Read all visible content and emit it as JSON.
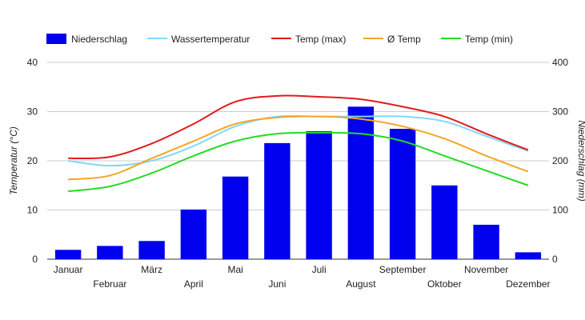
{
  "chart_data": {
    "type": "bar+line",
    "categories": [
      "Januar",
      "Februar",
      "März",
      "April",
      "Mai",
      "Juni",
      "Juli",
      "August",
      "September",
      "Oktober",
      "November",
      "Dezember"
    ],
    "bars": {
      "name": "Niederschlag",
      "axis": "right",
      "color": "#0000ee",
      "values": [
        19,
        27,
        37,
        101,
        168,
        236,
        260,
        310,
        265,
        150,
        70,
        14
      ]
    },
    "series": [
      {
        "name": "Wassertemperatur",
        "axis": "left",
        "color": "#80d8ff",
        "values": [
          20.0,
          19.0,
          20.0,
          23.0,
          27.0,
          29.0,
          29.0,
          29.0,
          29.0,
          28.0,
          25.0,
          22.0
        ]
      },
      {
        "name": "Temp (max)",
        "axis": "left",
        "color": "#e31a1c",
        "values": [
          20.5,
          20.8,
          23.5,
          27.5,
          32.0,
          33.2,
          33.0,
          32.5,
          31.0,
          29.0,
          25.5,
          22.2
        ]
      },
      {
        "name": "Ø Temp",
        "axis": "left",
        "color": "#f5a623",
        "values": [
          16.2,
          17.0,
          20.5,
          24.0,
          27.5,
          28.8,
          29.0,
          28.5,
          27.0,
          24.5,
          21.0,
          17.8
        ]
      },
      {
        "name": "Temp (min)",
        "axis": "left",
        "color": "#22dd22",
        "values": [
          13.8,
          14.8,
          17.5,
          21.0,
          24.0,
          25.5,
          25.7,
          25.5,
          24.0,
          21.0,
          18.0,
          15.0
        ]
      }
    ],
    "legend_order": [
      "Niederschlag",
      "Wassertemperatur",
      "Temp (max)",
      "Ø Temp",
      "Temp (min)"
    ],
    "legend_position": "top-left",
    "y_left": {
      "label": "Temperatur (°C)",
      "ylim": [
        0,
        40
      ],
      "ticks": [
        "0",
        "10",
        "20",
        "30",
        "40"
      ]
    },
    "y_right": {
      "label": "Niederschlag (mm)",
      "ylim": [
        0,
        400
      ],
      "ticks": [
        "0",
        "100",
        "200",
        "300",
        "400"
      ]
    },
    "grid": true
  }
}
